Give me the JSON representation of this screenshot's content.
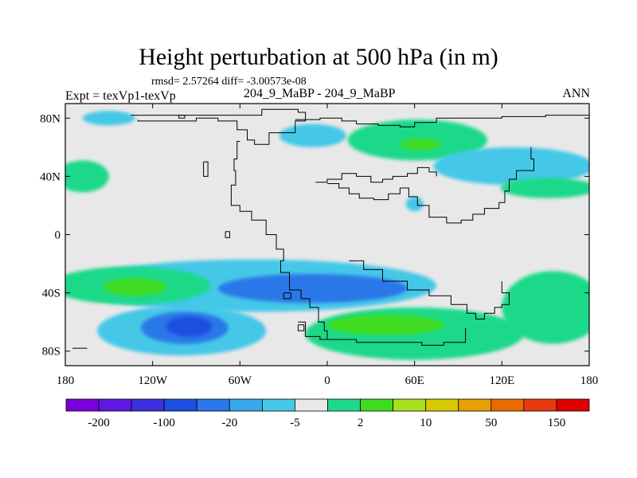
{
  "header": {
    "title": "Height perturbation at 500 hPa (in m)",
    "stats": "rmsd= 2.57264  diff= -3.00573e-08",
    "expt": "Expt = texVp1-texVp",
    "center_label": "204_9_MaBP - 204_9_MaBP",
    "season": "ANN"
  },
  "colors": {
    "background_fill": "#e8e8e8",
    "coast": "#000000"
  },
  "chart_data": {
    "type": "heatmap",
    "title": "Height perturbation at 500 hPa (in m)",
    "xlabel": "",
    "ylabel": "",
    "xlim": [
      -180,
      180
    ],
    "ylim": [
      -90,
      90
    ],
    "x_ticks": [
      {
        "value": -180,
        "label": "180"
      },
      {
        "value": -120,
        "label": "120W"
      },
      {
        "value": -60,
        "label": "60W"
      },
      {
        "value": 0,
        "label": "0"
      },
      {
        "value": 60,
        "label": "60E"
      },
      {
        "value": 120,
        "label": "120E"
      },
      {
        "value": 180,
        "label": "180"
      }
    ],
    "y_ticks": [
      {
        "value": 80,
        "label": "80N"
      },
      {
        "value": 40,
        "label": "40N"
      },
      {
        "value": 0,
        "label": "0"
      },
      {
        "value": -40,
        "label": "40S"
      },
      {
        "value": -80,
        "label": "80S"
      }
    ],
    "colorbar": {
      "colors": [
        "#7a00d9",
        "#5e18e0",
        "#3b2fe0",
        "#1e4fe0",
        "#2a78e8",
        "#3aa8ec",
        "#45c8e8",
        "#e8e8e8",
        "#1fd98a",
        "#40dc20",
        "#a8e020",
        "#d8c800",
        "#e8a000",
        "#e86a00",
        "#e83a10",
        "#e00000"
      ],
      "labels": [
        {
          "after_box": 1,
          "text": "-200"
        },
        {
          "after_box": 3,
          "text": "-100"
        },
        {
          "after_box": 5,
          "text": "-20"
        },
        {
          "after_box": 7,
          "text": "-5"
        },
        {
          "after_box": 9,
          "text": "2"
        },
        {
          "after_box": 11,
          "text": "10"
        },
        {
          "after_box": 13,
          "text": "50"
        },
        {
          "after_box": 15,
          "text": "150"
        }
      ]
    },
    "anomalies": [
      {
        "level": "-5 to -2",
        "color": "#45c8e8",
        "lon": -150,
        "lat": 80,
        "rlon": 18,
        "rlat": 5
      },
      {
        "level": "2 to 5",
        "color": "#1fd98a",
        "lon": -168,
        "lat": 40,
        "rlon": 18,
        "rlat": 11
      },
      {
        "level": "-5 to -2",
        "color": "#45c8e8",
        "lon": -10,
        "lat": 68,
        "rlon": 23,
        "rlat": 8
      },
      {
        "level": "2 to 5",
        "color": "#1fd98a",
        "lon": 62,
        "lat": 65,
        "rlon": 48,
        "rlat": 14
      },
      {
        "level": "5 to 10",
        "color": "#40dc20",
        "lon": 64,
        "lat": 62,
        "rlon": 14,
        "rlat": 4
      },
      {
        "level": "-5 to -2",
        "color": "#45c8e8",
        "lon": 128,
        "lat": 47,
        "rlon": 55,
        "rlat": 13
      },
      {
        "level": "-5 to -2",
        "color": "#45c8e8",
        "lon": 60,
        "lat": 21,
        "rlon": 6,
        "rlat": 5
      },
      {
        "level": "2 to 5",
        "color": "#1fd98a",
        "lon": 152,
        "lat": 32,
        "rlon": 33,
        "rlat": 7
      },
      {
        "level": "-5 to -2",
        "color": "#45c8e8",
        "lon": -50,
        "lat": -35,
        "rlon": 125,
        "rlat": 18
      },
      {
        "level": "2 to 5",
        "color": "#1fd98a",
        "lon": -135,
        "lat": -35,
        "rlon": 55,
        "rlat": 13
      },
      {
        "level": "5 to 10",
        "color": "#40dc20",
        "lon": -132,
        "lat": -36,
        "rlon": 22,
        "rlat": 6
      },
      {
        "level": "-20 to -5",
        "color": "#2a78e8",
        "lon": -10,
        "lat": -37,
        "rlon": 65,
        "rlat": 10
      },
      {
        "level": "-5 to -2",
        "color": "#45c8e8",
        "lon": -100,
        "lat": -66,
        "rlon": 58,
        "rlat": 17
      },
      {
        "level": "-20 to -5",
        "color": "#2a78e8",
        "lon": -98,
        "lat": -64,
        "rlon": 30,
        "rlat": 11
      },
      {
        "level": "-100 to -20",
        "color": "#1e4fe0",
        "lon": -95,
        "lat": -63,
        "rlon": 16,
        "rlat": 7
      },
      {
        "level": "2 to 5",
        "color": "#1fd98a",
        "lon": 60,
        "lat": -68,
        "rlon": 75,
        "rlat": 18
      },
      {
        "level": "5 to 10",
        "color": "#40dc20",
        "lon": 40,
        "lat": -62,
        "rlon": 40,
        "rlat": 7
      },
      {
        "level": "2 to 5",
        "color": "#1fd98a",
        "lon": 155,
        "lat": -50,
        "rlon": 35,
        "rlat": 25
      }
    ],
    "coastlines": [
      {
        "name": "greenland",
        "points": [
          [
            -135,
            82
          ],
          [
            -90,
            82
          ],
          [
            -60,
            82
          ],
          [
            -45,
            86
          ],
          [
            -20,
            84
          ],
          [
            -15,
            78
          ],
          [
            -22,
            70
          ],
          [
            -40,
            62
          ],
          [
            -50,
            65
          ],
          [
            -55,
            72
          ],
          [
            -62,
            78
          ],
          [
            -75,
            80
          ],
          [
            -90,
            78
          ],
          [
            -130,
            79
          ]
        ]
      },
      {
        "name": "north-america-west",
        "points": [
          [
            -60,
            64
          ],
          [
            -62,
            52
          ],
          [
            -64,
            44
          ],
          [
            -63,
            34
          ],
          [
            -66,
            20
          ],
          [
            -60,
            16
          ],
          [
            -52,
            10
          ],
          [
            -42,
            0
          ],
          [
            -35,
            -10
          ],
          [
            -30,
            -18
          ],
          [
            -32,
            -26
          ],
          [
            -26,
            -38
          ],
          [
            -18,
            -44
          ],
          [
            -12,
            -50
          ],
          [
            -6,
            -60
          ],
          [
            -2,
            -66
          ],
          [
            0,
            -72
          ]
        ]
      },
      {
        "name": "europe-asia",
        "points": [
          [
            -22,
            79
          ],
          [
            -5,
            80
          ],
          [
            10,
            78
          ],
          [
            20,
            76
          ],
          [
            35,
            75
          ],
          [
            50,
            74
          ],
          [
            60,
            77
          ],
          [
            75,
            80
          ],
          [
            95,
            80
          ],
          [
            120,
            81
          ],
          [
            150,
            82
          ],
          [
            165,
            82
          ],
          [
            180,
            82
          ]
        ]
      },
      {
        "name": "eurasia-south",
        "points": [
          [
            0,
            35
          ],
          [
            8,
            32
          ],
          [
            15,
            28
          ],
          [
            22,
            25
          ],
          [
            32,
            24
          ],
          [
            42,
            28
          ],
          [
            50,
            32
          ],
          [
            56,
            26
          ],
          [
            62,
            20
          ],
          [
            70,
            12
          ],
          [
            82,
            8
          ],
          [
            92,
            10
          ],
          [
            100,
            14
          ],
          [
            108,
            18
          ],
          [
            118,
            22
          ],
          [
            122,
            30
          ],
          [
            125,
            38
          ],
          [
            130,
            44
          ],
          [
            142,
            52
          ],
          [
            140,
            60
          ]
        ]
      },
      {
        "name": "mediterranean",
        "points": [
          [
            -8,
            36
          ],
          [
            0,
            38
          ],
          [
            10,
            42
          ],
          [
            20,
            40
          ],
          [
            30,
            36
          ],
          [
            38,
            38
          ],
          [
            45,
            40
          ],
          [
            55,
            42
          ],
          [
            62,
            46
          ],
          [
            70,
            43
          ],
          [
            75,
            40
          ]
        ]
      },
      {
        "name": "africa-south",
        "points": [
          [
            15,
            -18
          ],
          [
            25,
            -24
          ],
          [
            38,
            -32
          ],
          [
            55,
            -38
          ],
          [
            70,
            -42
          ],
          [
            85,
            -48
          ],
          [
            96,
            -54
          ],
          [
            102,
            -58
          ],
          [
            108,
            -54
          ],
          [
            115,
            -50
          ],
          [
            120,
            -48
          ],
          [
            125,
            -40
          ],
          [
            120,
            -32
          ]
        ]
      },
      {
        "name": "antarctic-coast",
        "points": [
          [
            -20,
            -60
          ],
          [
            -15,
            -70
          ],
          [
            -5,
            -72
          ],
          [
            20,
            -74
          ],
          [
            45,
            -74
          ],
          [
            65,
            -76
          ],
          [
            80,
            -74
          ],
          [
            95,
            -64
          ]
        ]
      },
      {
        "name": "island-1",
        "points": [
          [
            -85,
            50
          ],
          [
            -82,
            50
          ],
          [
            -82,
            40
          ],
          [
            -85,
            40
          ],
          [
            -85,
            50
          ]
        ]
      },
      {
        "name": "island-2",
        "points": [
          [
            -70,
            2
          ],
          [
            -67,
            2
          ],
          [
            -67,
            -2
          ],
          [
            -70,
            -2
          ],
          [
            -70,
            2
          ]
        ]
      },
      {
        "name": "island-3",
        "points": [
          [
            -20,
            -62
          ],
          [
            -16,
            -62
          ],
          [
            -16,
            -66
          ],
          [
            -20,
            -66
          ],
          [
            -20,
            -62
          ]
        ]
      },
      {
        "name": "island-4",
        "points": [
          [
            -30,
            -40
          ],
          [
            -25,
            -40
          ],
          [
            -25,
            -44
          ],
          [
            -30,
            -44
          ],
          [
            -30,
            -40
          ]
        ]
      },
      {
        "name": "island-5",
        "points": [
          [
            -102,
            82
          ],
          [
            -98,
            82
          ],
          [
            -98,
            80
          ],
          [
            -102,
            80
          ],
          [
            -102,
            82
          ]
        ]
      },
      {
        "name": "island-6",
        "points": [
          [
            -175,
            -78
          ],
          [
            -165,
            -78
          ]
        ]
      }
    ]
  }
}
